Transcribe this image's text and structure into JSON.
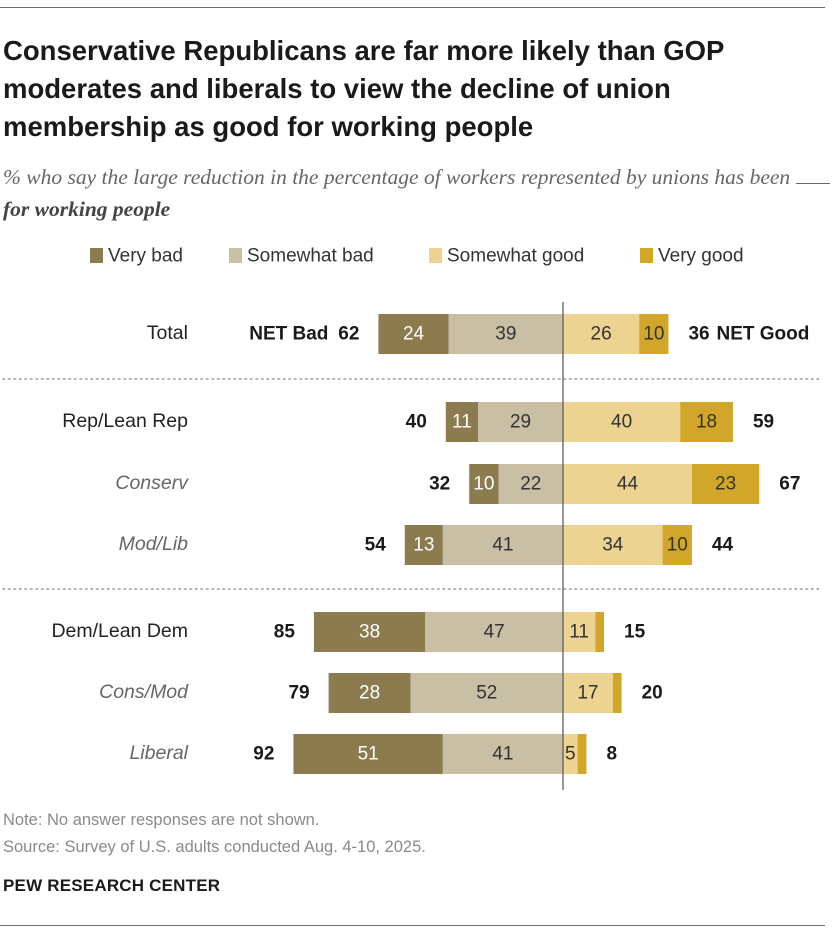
{
  "title": "Conservative Republicans are far more likely than GOP moderates and liberals to view the decline of union membership as good for working people",
  "subtitle": {
    "prefix": "% who say the large reduction in the percentage of workers represented by unions has been",
    "emphasis": "for working people"
  },
  "colors": {
    "very_bad": "#8c7b4f",
    "somewhat_bad": "#c9bfa5",
    "somewhat_good": "#ecd391",
    "very_good": "#d2a629",
    "text_on_dark": "#ffffff",
    "text_on_light": "#333333"
  },
  "chart_data": {
    "type": "bar",
    "orientation": "horizontal-diverging",
    "legend": [
      {
        "key": "very_bad",
        "label": "Very bad"
      },
      {
        "key": "somewhat_bad",
        "label": "Somewhat bad"
      },
      {
        "key": "somewhat_good",
        "label": "Somewhat good"
      },
      {
        "key": "very_good",
        "label": "Very good"
      }
    ],
    "net_labels": {
      "bad": "NET Bad",
      "good": "NET Good"
    },
    "rows": [
      {
        "label": "Total",
        "italic": false,
        "very_bad": 24,
        "somewhat_bad": 39,
        "somewhat_good": 26,
        "very_good": 10,
        "net_bad": 62,
        "net_good": 36,
        "show_net_text": true
      },
      {
        "label": "Rep/Lean Rep",
        "italic": false,
        "very_bad": 11,
        "somewhat_bad": 29,
        "somewhat_good": 40,
        "very_good": 18,
        "net_bad": 40,
        "net_good": 59
      },
      {
        "label": "Conserv",
        "italic": true,
        "very_bad": 10,
        "somewhat_bad": 22,
        "somewhat_good": 44,
        "very_good": 23,
        "net_bad": 32,
        "net_good": 67
      },
      {
        "label": "Mod/Lib",
        "italic": true,
        "very_bad": 13,
        "somewhat_bad": 41,
        "somewhat_good": 34,
        "very_good": 10,
        "net_bad": 54,
        "net_good": 44
      },
      {
        "label": "Dem/Lean Dem",
        "italic": false,
        "very_bad": 38,
        "somewhat_bad": 47,
        "somewhat_good": 11,
        "very_good": 3,
        "net_bad": 85,
        "net_good": 15
      },
      {
        "label": "Cons/Mod",
        "italic": true,
        "very_bad": 28,
        "somewhat_bad": 52,
        "somewhat_good": 17,
        "very_good": 3,
        "net_bad": 79,
        "net_good": 20
      },
      {
        "label": "Liberal",
        "italic": true,
        "very_bad": 51,
        "somewhat_bad": 41,
        "somewhat_good": 5,
        "very_good": 3,
        "net_bad": 92,
        "net_good": 8
      }
    ]
  },
  "notes": {
    "note": "Note: No answer responses are not shown.",
    "source": "Source: Survey of U.S. adults conducted Aug. 4-10, 2025."
  },
  "brand": "PEW RESEARCH CENTER"
}
